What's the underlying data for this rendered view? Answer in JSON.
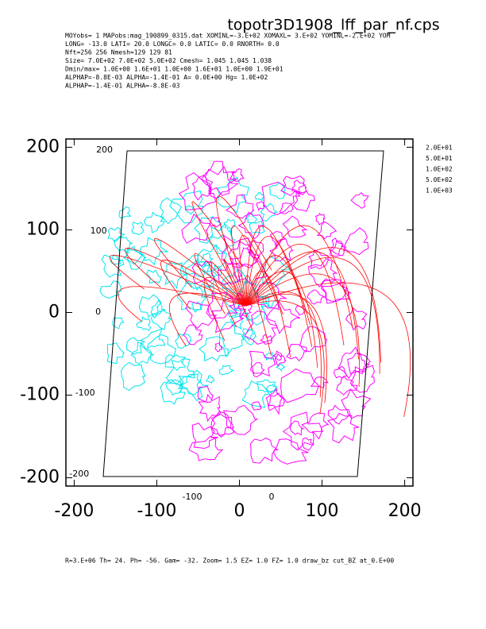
{
  "chart_data": {
    "type": "contour",
    "title": "topotr3D1908_lff_par_nf.cps",
    "header": [
      "MOYobs=   1 MAPobs:mag_190899_0315.dat XOMINL=-3.E+02 XOMAXL= 3.E+02 YOMINL=-2.E+02 YOM",
      "LONG= -13.0 LATI= 20.0 LONGC=    0.0 LATIC=  0.0 RNORTH=    0.0",
      "Nft=256 256 Nmesh=129 129  81",
      "Size=  7.0E+02  7.0E+02  5.0E+02 Cmesh= 1.045  1.045  1.038",
      "Dmin/max= 1.0E+00  1.6E+01  1.0E+00  1.6E+01  1.0E+00  1.9E+01",
      "ALPHAP=-8.8E-03 ALPHA=-1.4E-01 A=  0.0E+00 Hg=  1.0E+02",
      "ALPHAP=-1.4E-01 ALPHA=-8.8E-03"
    ],
    "levels": [
      "2.0E+01",
      "5.0E+01",
      "1.0E+02",
      "5.0E+02",
      "1.0E+03"
    ],
    "footer": "R=3.E+06 Th= 24. Ph= -56. Gam= -32. Zoom= 1.5 EZ= 1.0 FZ= 1.0 draw_bz cut_BZ at_0.E+00",
    "xlim": [
      -210,
      210
    ],
    "ylim": [
      -210,
      210
    ],
    "xticks": [
      -200,
      -100,
      0,
      100,
      200
    ],
    "yticks": [
      -200,
      -100,
      0,
      100,
      200
    ],
    "inner_xticks": [
      -100,
      0
    ],
    "inner_yticks": [
      200,
      100,
      0,
      -100,
      -200
    ],
    "colors": {
      "positive": "#ff00ff",
      "negative": "#00e5ee",
      "fieldlines": "#ff0000"
    }
  }
}
